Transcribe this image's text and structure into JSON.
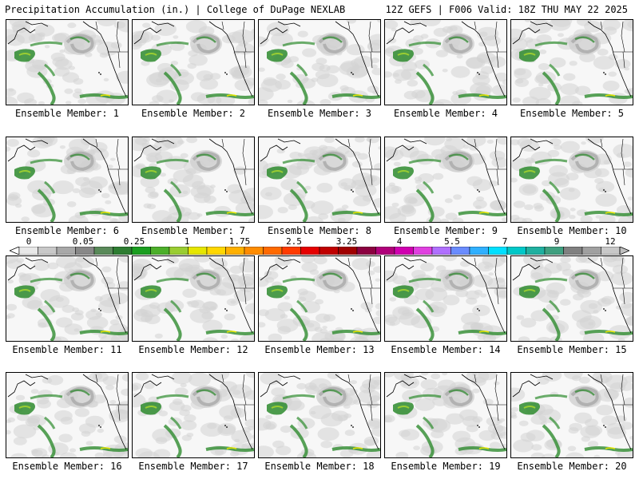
{
  "header": {
    "left_title": "Precipitation Accumulation (in.) | College of DuPage NEXLAB",
    "right_title": "12Z GEFS | F006 Valid: 18Z THU MAY 22 2025"
  },
  "members": [
    "Ensemble Member: 1",
    "Ensemble Member: 2",
    "Ensemble Member: 3",
    "Ensemble Member: 4",
    "Ensemble Member: 5",
    "Ensemble Member: 6",
    "Ensemble Member: 7",
    "Ensemble Member: 8",
    "Ensemble Member: 9",
    "Ensemble Member: 10",
    "Ensemble Member: 11",
    "Ensemble Member: 12",
    "Ensemble Member: 13",
    "Ensemble Member: 14",
    "Ensemble Member: 15",
    "Ensemble Member: 16",
    "Ensemble Member: 17",
    "Ensemble Member: 18",
    "Ensemble Member: 19",
    "Ensemble Member: 20"
  ],
  "colorbar": {
    "tick_labels": [
      "0",
      "0.05",
      "0.25",
      "1",
      "1.75",
      "2.5",
      "3.25",
      "4",
      "5.5",
      "7",
      "9",
      "12"
    ],
    "colors": [
      "#e8e8e8",
      "#c8c8c8",
      "#a8a8a8",
      "#888888",
      "#5a8a5a",
      "#2e7d32",
      "#1b9e20",
      "#4caf2a",
      "#9acd32",
      "#e6e600",
      "#ffd700",
      "#ffb000",
      "#ff8c00",
      "#ff6a00",
      "#ff3b00",
      "#e60000",
      "#c00000",
      "#a00000",
      "#8b0040",
      "#b0007a",
      "#d000b0",
      "#e040e0",
      "#b070ff",
      "#6a8cff",
      "#30b0ff",
      "#00e0ff",
      "#00c8c8",
      "#20b0a0",
      "#40a080",
      "#808080",
      "#a0a0a0",
      "#c8c8c8"
    ]
  }
}
